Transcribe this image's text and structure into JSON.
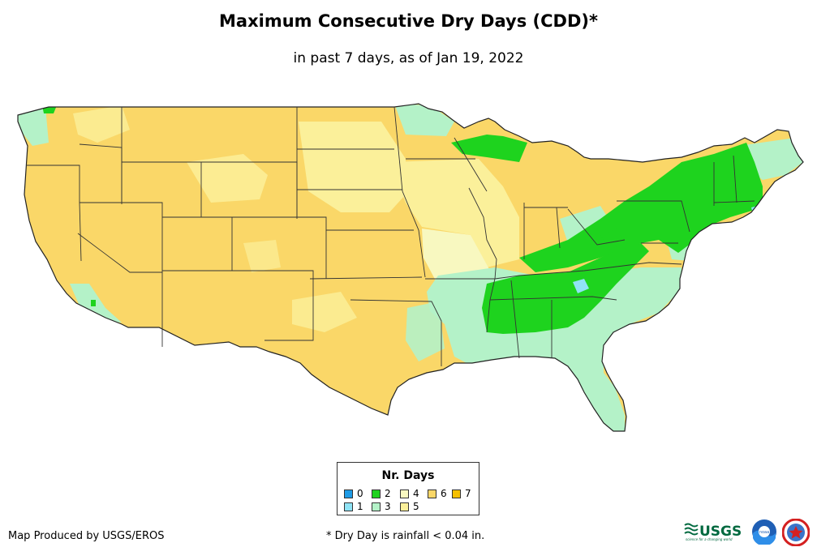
{
  "title": "Maximum Consecutive Dry Days (CDD)*",
  "subtitle": "in past 7 days, as of Jan 19, 2022",
  "legend": {
    "title": "Nr. Days",
    "items": [
      {
        "label": "0",
        "color": "#1e9be6"
      },
      {
        "label": "1",
        "color": "#8fe3f5"
      },
      {
        "label": "2",
        "color": "#1ed31e"
      },
      {
        "label": "3",
        "color": "#b4f2c8"
      },
      {
        "label": "4",
        "color": "#f8f8c0"
      },
      {
        "label": "5",
        "color": "#fbf09a"
      },
      {
        "label": "6",
        "color": "#fad768"
      },
      {
        "label": "7",
        "color": "#f5c000"
      }
    ]
  },
  "credit": "Map Produced by USGS/EROS",
  "footnote": "* Dry Day is rainfall < 0.04 in.",
  "logos": {
    "usgs": "USGS",
    "usgs_tagline": "science for a changing world",
    "noaa": "noaa"
  },
  "colors": {
    "border": "#222222",
    "state_line": "#333333"
  }
}
